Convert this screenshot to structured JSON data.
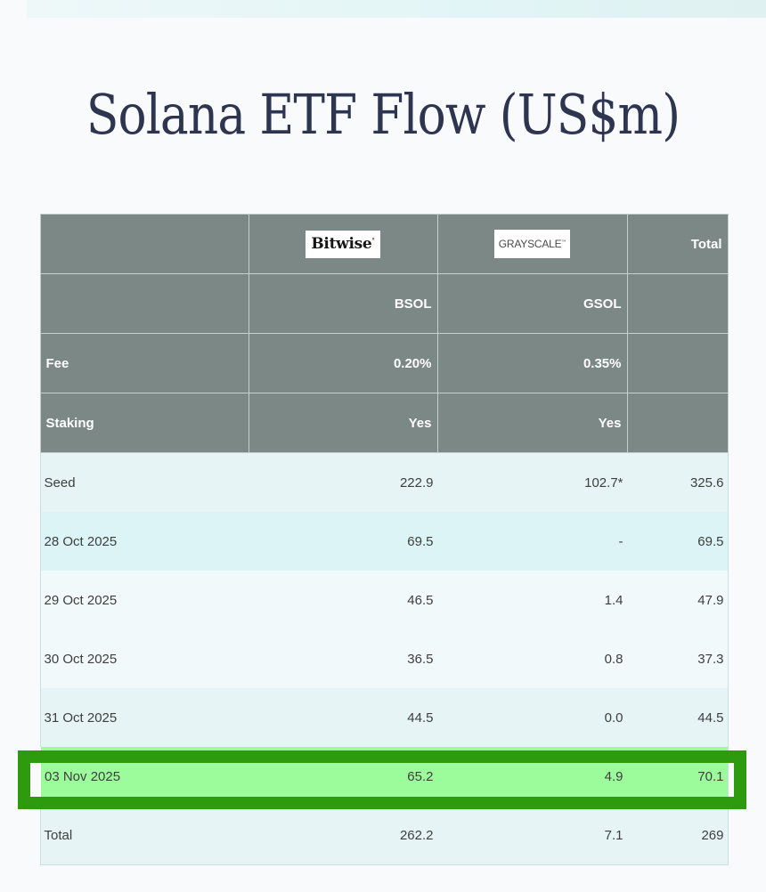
{
  "title": "Solana ETF Flow (US$m)",
  "table": {
    "header_rows": [
      {
        "label": "",
        "bitwise_logo": "Bitwise",
        "grayscale_logo": "GRAYSCALE",
        "total": "Total"
      },
      {
        "label": "",
        "bsol": "BSOL",
        "gsol": "GSOL",
        "total": ""
      },
      {
        "label": "Fee",
        "bsol": "0.20%",
        "gsol": "0.35%",
        "total": ""
      },
      {
        "label": "Staking",
        "bsol": "Yes",
        "gsol": "Yes",
        "total": ""
      }
    ],
    "rows": [
      {
        "label": "Seed",
        "bsol": "222.9",
        "gsol": "102.7*",
        "total": "325.6"
      },
      {
        "label": "28 Oct 2025",
        "bsol": "69.5",
        "gsol": "-",
        "total": "69.5"
      },
      {
        "label": "29 Oct 2025",
        "bsol": "46.5",
        "gsol": "1.4",
        "total": "47.9"
      },
      {
        "label": "30 Oct 2025",
        "bsol": "36.5",
        "gsol": "0.8",
        "total": "37.3"
      },
      {
        "label": "31 Oct 2025",
        "bsol": "44.5",
        "gsol": "0.0",
        "total": "44.5"
      },
      {
        "label": "03 Nov 2025",
        "bsol": "65.2",
        "gsol": "4.9",
        "total": "70.1"
      },
      {
        "label": "Total",
        "bsol": "262.2",
        "gsol": "7.1",
        "total": "269"
      }
    ],
    "highlighted_row": "03 Nov 2025"
  },
  "colors": {
    "header_bg": "#7b8885",
    "row_bg": "#e6f4f5",
    "row_alt_bg": "#dcf4f6",
    "highlight_fill": "#9cfc9c",
    "highlight_border": "#2e9a0d",
    "title_color": "#2d3550"
  }
}
